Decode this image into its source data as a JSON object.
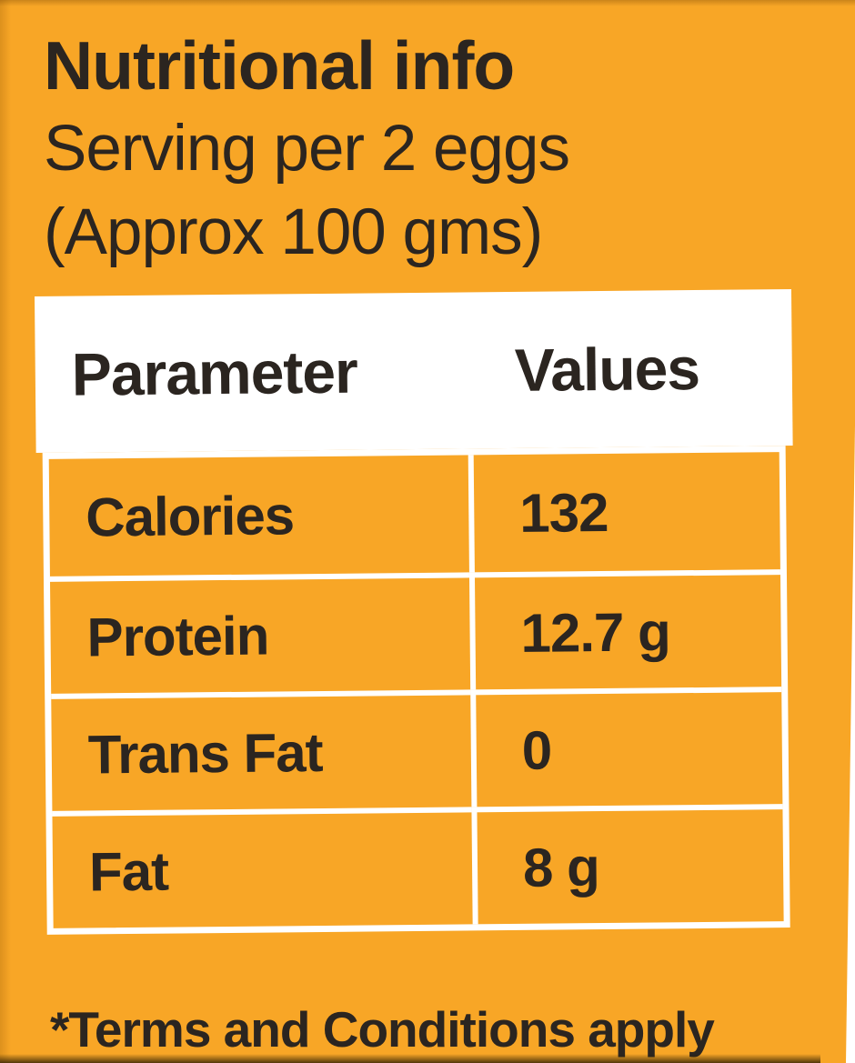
{
  "colors": {
    "background": "#F8A626",
    "text": "#2B2520",
    "table_paper": "#FFFFFF"
  },
  "header": {
    "title": "Nutritional info",
    "subtitle_line1": "Serving per 2 eggs",
    "subtitle_line2": "(Approx 100 gms)"
  },
  "table": {
    "columns": [
      "Parameter",
      "Values"
    ],
    "rows": [
      {
        "parameter": "Calories",
        "value": "132"
      },
      {
        "parameter": "Protein",
        "value": "12.7 g"
      },
      {
        "parameter": "Trans Fat",
        "value": "0"
      },
      {
        "parameter": "Fat",
        "value": "8 g"
      }
    ]
  },
  "footer": {
    "note": "*Terms and Conditions apply"
  },
  "chart_data": {
    "type": "table",
    "title": "Nutritional info — Serving per 2 eggs (Approx 100 gms)",
    "columns": [
      "Parameter",
      "Values"
    ],
    "rows": [
      [
        "Calories",
        "132"
      ],
      [
        "Protein",
        "12.7 g"
      ],
      [
        "Trans Fat",
        "0"
      ],
      [
        "Fat",
        "8 g"
      ]
    ]
  }
}
